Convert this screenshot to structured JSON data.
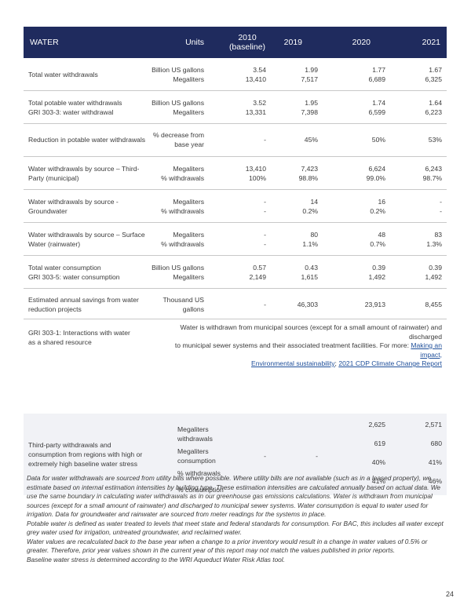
{
  "header": {
    "water": "WATER",
    "units": "Units",
    "y2010": "2010",
    "y2010_sub": "(baseline)",
    "y2019": "2019",
    "y2020": "2020",
    "y2021": "2021"
  },
  "rows": [
    {
      "label": [
        "Total water withdrawals",
        ""
      ],
      "units": [
        "Billion US gallons",
        "Megaliters"
      ],
      "v2010": [
        "3.54",
        "13,410"
      ],
      "v2019": [
        "1.99",
        "7,517"
      ],
      "v2020": [
        "1.77",
        "6,689"
      ],
      "v2021": [
        "1.67",
        "6,325"
      ]
    },
    {
      "label": [
        "Total potable water withdrawals",
        "GRI 303-3: water withdrawal"
      ],
      "units": [
        "Billion US gallons",
        "Megaliters"
      ],
      "v2010": [
        "3.52",
        "13,331"
      ],
      "v2019": [
        "1.95",
        "7,398"
      ],
      "v2020": [
        "1.74",
        "6,599"
      ],
      "v2021": [
        "1.64",
        "6,223"
      ]
    },
    {
      "label": [
        "Reduction in potable water withdrawals",
        ""
      ],
      "units": [
        "% decrease from",
        "base year"
      ],
      "v2010": [
        "-",
        ""
      ],
      "v2019": [
        "45%",
        ""
      ],
      "v2020": [
        "50%",
        ""
      ],
      "v2021": [
        "53%",
        ""
      ]
    },
    {
      "label": [
        "Water withdrawals by source – Third-",
        "Party (municipal)"
      ],
      "units": [
        "Megaliters",
        "% withdrawals"
      ],
      "v2010": [
        "13,410",
        "100%"
      ],
      "v2019": [
        "7,423",
        "98.8%"
      ],
      "v2020": [
        "6,624",
        "99.0%"
      ],
      "v2021": [
        "6,243",
        "98.7%"
      ]
    },
    {
      "label": [
        "Water withdrawals by source -",
        "Groundwater"
      ],
      "units": [
        "Megaliters",
        "% withdrawals"
      ],
      "v2010": [
        "-",
        "-"
      ],
      "v2019": [
        "14",
        "0.2%"
      ],
      "v2020": [
        "16",
        "0.2%"
      ],
      "v2021": [
        "-",
        "-"
      ]
    },
    {
      "label": [
        "Water withdrawals by source – Surface",
        "Water (rainwater)"
      ],
      "units": [
        "Megaliters",
        "% withdrawals"
      ],
      "v2010": [
        "-",
        "-"
      ],
      "v2019": [
        "80",
        "1.1%"
      ],
      "v2020": [
        "48",
        "0.7%"
      ],
      "v2021": [
        "83",
        "1.3%"
      ]
    },
    {
      "label": [
        "Total water consumption",
        "GRI 303-5: water consumption"
      ],
      "units": [
        "Billion US gallons",
        "Megaliters"
      ],
      "v2010": [
        "0.57",
        "2,149"
      ],
      "v2019": [
        "0.43",
        "1,615"
      ],
      "v2020": [
        "0.39",
        "1,492"
      ],
      "v2021": [
        "0.39",
        "1,492"
      ]
    },
    {
      "label": [
        "Estimated annual savings from water",
        "reduction projects"
      ],
      "units": [
        "Thousand US",
        "gallons"
      ],
      "v2010": [
        "-",
        ""
      ],
      "v2019": [
        "46,303",
        ""
      ],
      "v2020": [
        "23,913",
        ""
      ],
      "v2021": [
        "8,455",
        ""
      ]
    }
  ],
  "gri303_1": {
    "label": [
      "GRI 303-1: Interactions with water",
      "as a shared resource"
    ],
    "text1": "Water is withdrawn from municipal sources (except for a small amount of rainwater) and discharged",
    "text2": "to municipal sewer systems and their associated treatment facilities. For more: ",
    "link1": "Making an impact,",
    "link2": "Environmental sustainability",
    "sep": "; ",
    "link3": "2021 CDP Climate Change Report"
  },
  "third_party": {
    "label": [
      "Third-party withdrawals and",
      "consumption from regions with high or",
      "extremely high baseline water stress"
    ],
    "units": [
      "Megaliters",
      "withdrawals",
      "Megaliters",
      "consumption",
      "% withdrawals",
      "% consumption"
    ],
    "v2010": "-",
    "v2019": "-",
    "v2020": [
      "2,625",
      "619",
      "40%",
      "41%"
    ],
    "v2021": [
      "2,571",
      "680",
      "41%",
      "46%"
    ]
  },
  "footnotes": [
    "Data for water withdrawals are sourced from utility bills where possible. Where utility bills are not available (such as in a leased property), we estimate based on internal estimation intensities by building type. These estimation intensities are calculated annually based on actual data. We use the same boundary in calculating water withdrawals as in our greenhouse gas emissions calculations. Water is withdrawn from municipal sources (except for a small amount of rainwater) and discharged to municipal sewer systems. Water consumption is equal to water used for irrigation. Data for groundwater and rainwater are sourced from meter readings for the systems in place.",
    "Potable water is defined as water treated to levels that meet state and federal standards for consumption. For BAC, this includes all water except grey water used for irrigation, untreated groundwater, and reclaimed water.",
    "Water values are recalculated back to the base year when a change to a prior inventory would result in a change in water values of 0.5% or greater. Therefore, prior year values shown in the current year of this report may not match the values published in prior reports.",
    "Baseline water stress is determined according to the WRI Aqueduct Water Risk Atlas tool."
  ],
  "page_number": "24",
  "colors": {
    "header_bg": "#1f2b5e",
    "link": "#1f4f9a",
    "band_bg": "#f1f2f6"
  }
}
